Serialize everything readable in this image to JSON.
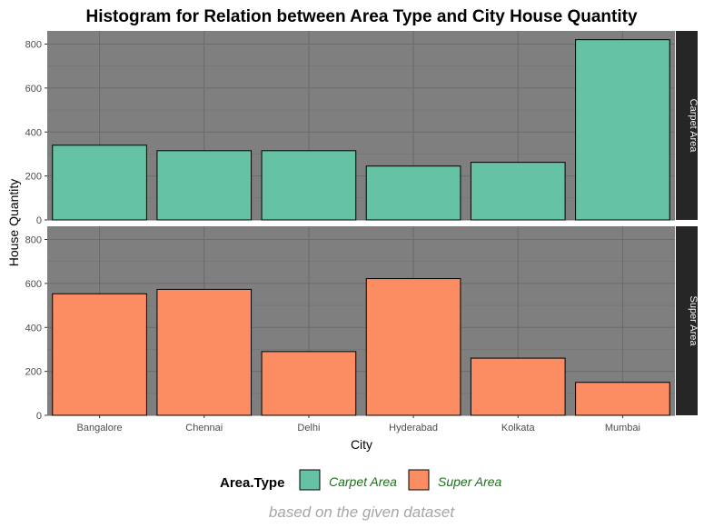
{
  "chart_data": {
    "type": "bar",
    "title": "Histogram for Relation between Area Type and City House Quantity",
    "xlabel": "City",
    "ylabel": "House Quantity",
    "caption": "based on the given dataset",
    "categories": [
      "Bangalore",
      "Chennai",
      "Delhi",
      "Hyderabad",
      "Kolkata",
      "Mumbai"
    ],
    "ylim": [
      0,
      860
    ],
    "yticks": [
      0,
      200,
      400,
      600,
      800
    ],
    "grid": true,
    "legend": {
      "title": "Area.Type",
      "position": "bottom",
      "entries": [
        "Carpet Area",
        "Super Area"
      ]
    },
    "series": [
      {
        "name": "Carpet Area",
        "color": "#66c2a5",
        "values": [
          340,
          315,
          315,
          245,
          262,
          820
        ]
      },
      {
        "name": "Super Area",
        "color": "#fc8d62",
        "values": [
          553,
          573,
          290,
          622,
          260,
          150
        ]
      }
    ]
  }
}
